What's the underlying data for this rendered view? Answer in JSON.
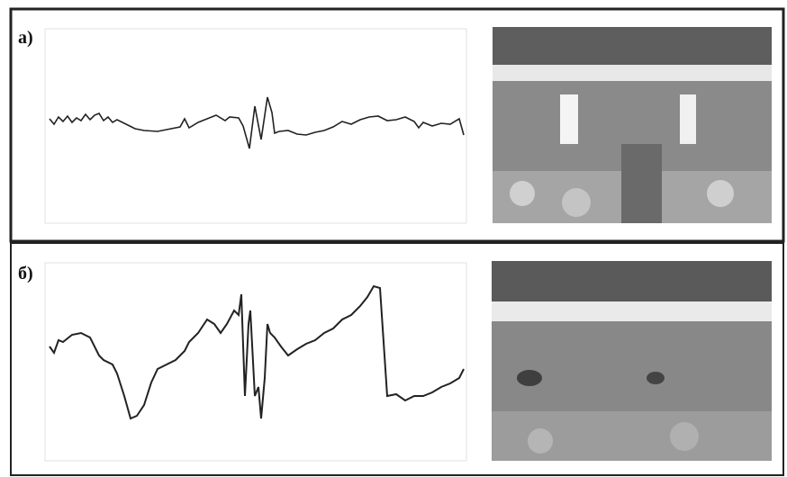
{
  "panels": [
    {
      "label": "а)"
    },
    {
      "label": "б)"
    }
  ]
}
